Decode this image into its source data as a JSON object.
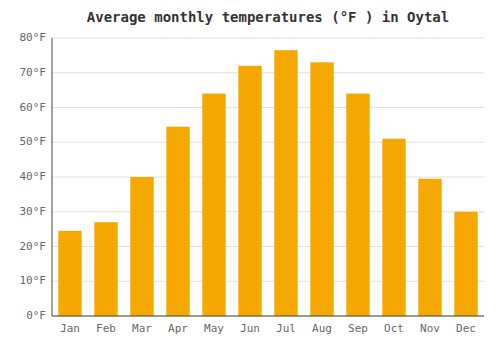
{
  "chart_data": {
    "type": "bar",
    "title": "Average monthly temperatures (°F ) in Oytal",
    "categories": [
      "Jan",
      "Feb",
      "Mar",
      "Apr",
      "May",
      "Jun",
      "Jul",
      "Aug",
      "Sep",
      "Oct",
      "Nov",
      "Dec"
    ],
    "values": [
      24.5,
      27.0,
      40.0,
      54.5,
      64.0,
      72.0,
      76.5,
      73.0,
      64.0,
      51.0,
      39.5,
      30.0
    ],
    "color": "#F5A800",
    "ylim": [
      0,
      80
    ],
    "yticks": [
      {
        "value": 0,
        "label": "0°F"
      },
      {
        "value": 10,
        "label": "10°F"
      },
      {
        "value": 20,
        "label": "20°F"
      },
      {
        "value": 30,
        "label": "30°F"
      },
      {
        "value": 40,
        "label": "40°F"
      },
      {
        "value": 50,
        "label": "50°F"
      },
      {
        "value": 60,
        "label": "60°F"
      },
      {
        "value": 70,
        "label": "70°F"
      },
      {
        "value": 80,
        "label": "80°F"
      }
    ],
    "grid": true
  }
}
